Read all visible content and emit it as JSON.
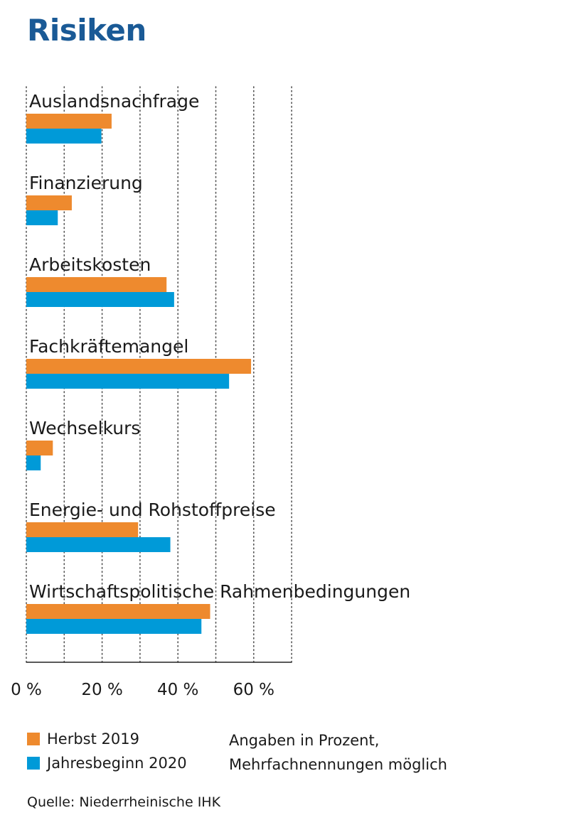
{
  "title": "Risiken",
  "chart_data": {
    "type": "bar",
    "orientation": "horizontal",
    "title": "Risiken",
    "categories": [
      "Auslandsnachfrage",
      "Finanzierung",
      "Arbeitskosten",
      "Fachkräftemangel",
      "Wechselkurs",
      "Energie- und Rohstoffpreise",
      "Wirtschaftspolitische Rahmenbedingungen"
    ],
    "series": [
      {
        "name": "Herbst 2019",
        "color": "#ee8a2e",
        "values": [
          22.5,
          12,
          37,
          59.3,
          7,
          29.5,
          48.5
        ]
      },
      {
        "name": "Jahresbeginn 2020",
        "color": "#009ad8",
        "values": [
          19.8,
          8.3,
          39,
          53.5,
          3.8,
          38,
          46.2
        ]
      }
    ],
    "xlim": [
      0,
      70
    ],
    "xticks": [
      "0 %",
      "20 %",
      "40 %",
      "60 %"
    ],
    "xtick_values": [
      0,
      20,
      40,
      60
    ],
    "grid": true,
    "legend_position": "bottom-left"
  },
  "legend": [
    {
      "label": "Herbst 2019",
      "color": "#ee8a2e"
    },
    {
      "label": "Jahresbeginn 2020",
      "color": "#009ad8"
    }
  ],
  "note_line1": "Angaben in Prozent,",
  "note_line2": "Mehrfachnennungen möglich",
  "source": "Quelle: Niederrheinische IHK"
}
